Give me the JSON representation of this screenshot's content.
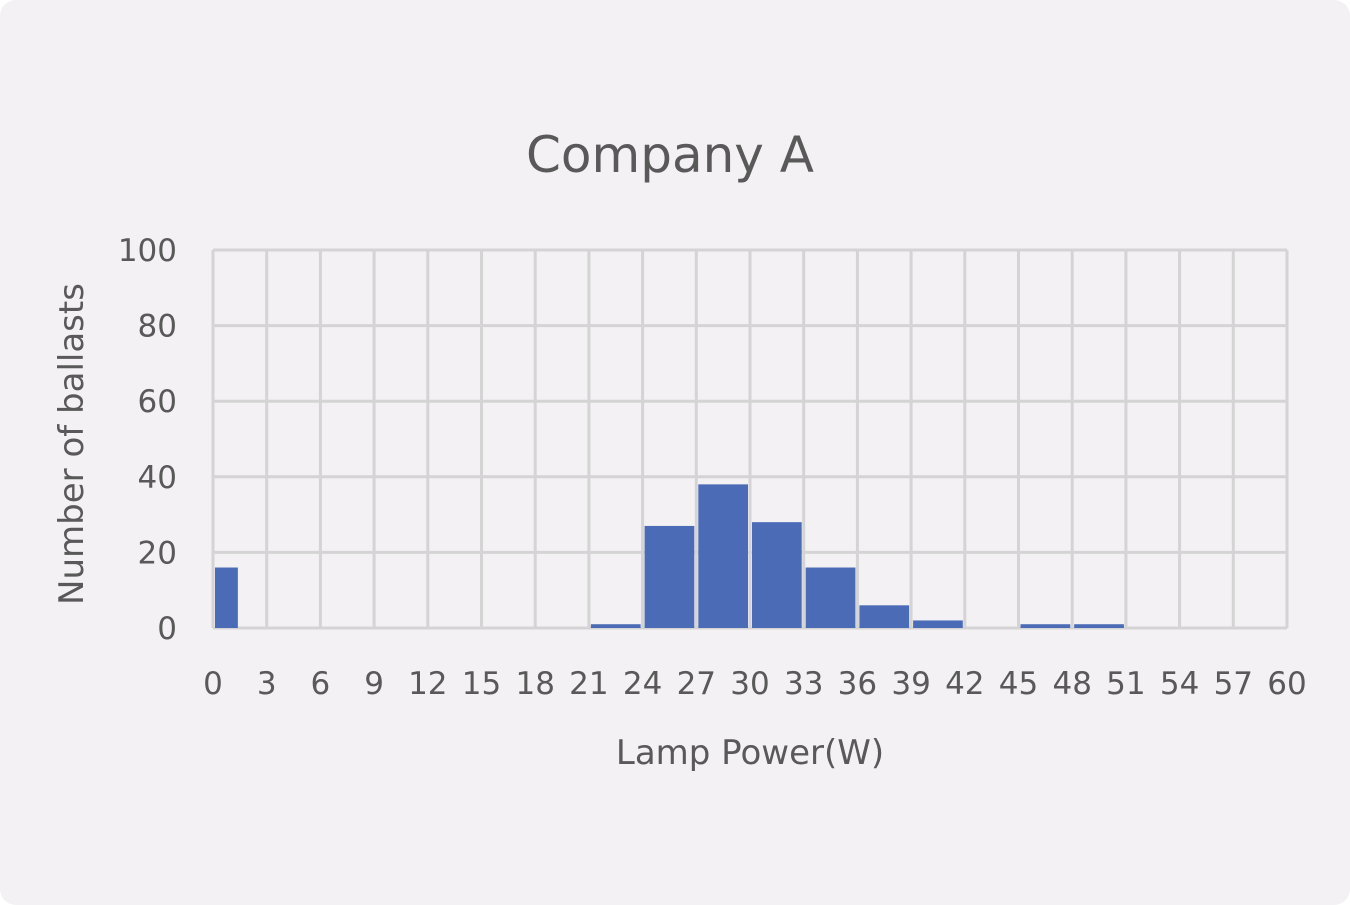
{
  "chart_data": {
    "type": "bar",
    "title": "Company A",
    "xlabel": "Lamp Power(W)",
    "ylabel": "Number of ballasts",
    "ylim": [
      0,
      100
    ],
    "xlim": [
      0,
      60
    ],
    "bin_width": 3,
    "x_ticks": [
      "0",
      "3",
      "6",
      "9",
      "12",
      "15",
      "18",
      "21",
      "24",
      "27",
      "30",
      "33",
      "36",
      "39",
      "42",
      "45",
      "48",
      "51",
      "54",
      "57",
      "60"
    ],
    "y_ticks": [
      "0",
      "20",
      "40",
      "60",
      "80",
      "100"
    ],
    "grid": true,
    "legend": "none",
    "bar_color": "#4b6bb7",
    "bins": [
      {
        "start": 0,
        "end": 1.5,
        "value": 16
      },
      {
        "start": 18,
        "end": 21,
        "value": 0
      },
      {
        "start": 21,
        "end": 24,
        "value": 1
      },
      {
        "start": 24,
        "end": 27,
        "value": 27
      },
      {
        "start": 27,
        "end": 30,
        "value": 38
      },
      {
        "start": 30,
        "end": 33,
        "value": 28
      },
      {
        "start": 33,
        "end": 36,
        "value": 16
      },
      {
        "start": 36,
        "end": 39,
        "value": 6
      },
      {
        "start": 39,
        "end": 42,
        "value": 2
      },
      {
        "start": 45,
        "end": 48,
        "value": 1
      },
      {
        "start": 48,
        "end": 51,
        "value": 1
      }
    ]
  }
}
